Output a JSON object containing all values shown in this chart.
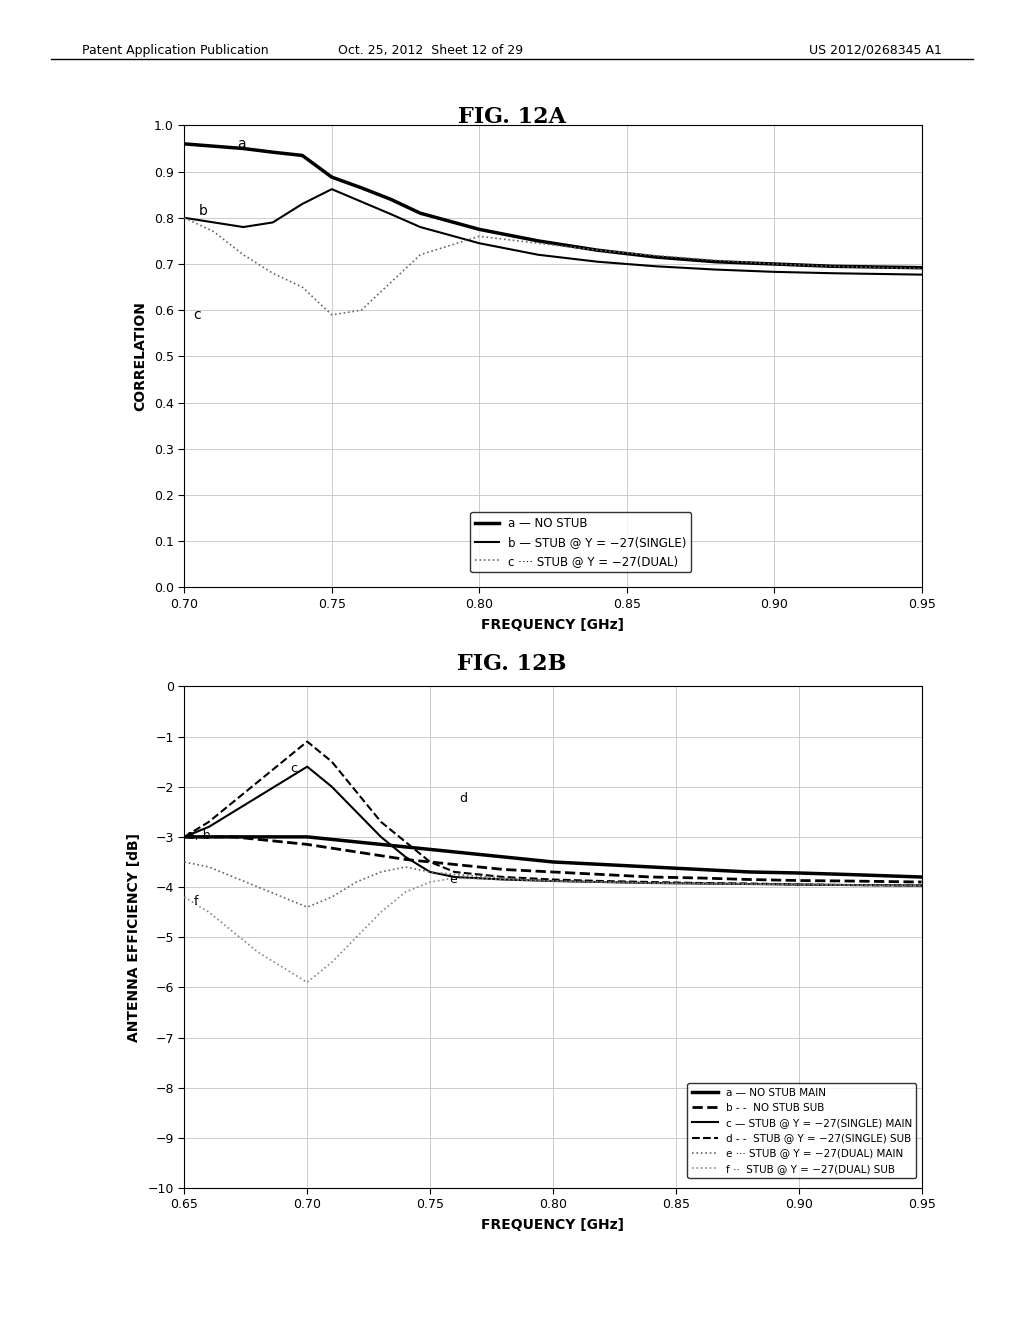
{
  "fig12a_title": "FIG. 12A",
  "fig12b_title": "FIG. 12B",
  "header_left": "Patent Application Publication",
  "header_mid": "Oct. 25, 2012  Sheet 12 of 29",
  "header_right": "US 2012/0268345 A1",
  "fig12a": {
    "xlabel": "FREQUENCY [GHz]",
    "ylabel": "CORRELATION",
    "xlim": [
      0.7,
      0.95
    ],
    "ylim": [
      0,
      1
    ],
    "xticks": [
      0.7,
      0.75,
      0.8,
      0.85,
      0.9,
      0.95
    ],
    "yticks": [
      0,
      0.1,
      0.2,
      0.3,
      0.4,
      0.5,
      0.6,
      0.7,
      0.8,
      0.9,
      1.0
    ],
    "curve_a_x": [
      0.7,
      0.71,
      0.72,
      0.73,
      0.74,
      0.75,
      0.76,
      0.77,
      0.78,
      0.8,
      0.82,
      0.84,
      0.86,
      0.88,
      0.9,
      0.92,
      0.95
    ],
    "curve_a_y": [
      0.96,
      0.955,
      0.95,
      0.942,
      0.935,
      0.888,
      0.865,
      0.84,
      0.81,
      0.775,
      0.75,
      0.73,
      0.715,
      0.705,
      0.7,
      0.695,
      0.692
    ],
    "curve_b_x": [
      0.7,
      0.71,
      0.72,
      0.73,
      0.74,
      0.75,
      0.76,
      0.77,
      0.78,
      0.8,
      0.82,
      0.84,
      0.86,
      0.88,
      0.9,
      0.92,
      0.95
    ],
    "curve_b_y": [
      0.8,
      0.79,
      0.78,
      0.79,
      0.83,
      0.862,
      0.835,
      0.808,
      0.78,
      0.745,
      0.72,
      0.705,
      0.695,
      0.688,
      0.683,
      0.68,
      0.677
    ],
    "curve_c_x": [
      0.7,
      0.71,
      0.72,
      0.73,
      0.74,
      0.75,
      0.76,
      0.77,
      0.78,
      0.8,
      0.82,
      0.84,
      0.86,
      0.88,
      0.9,
      0.92,
      0.95
    ],
    "curve_c_y": [
      0.8,
      0.77,
      0.72,
      0.68,
      0.65,
      0.59,
      0.6,
      0.66,
      0.72,
      0.76,
      0.745,
      0.73,
      0.718,
      0.708,
      0.7,
      0.695,
      0.69
    ]
  },
  "fig12b": {
    "xlabel": "FREQUENCY [GHz]",
    "ylabel": "ANTENNA EFFICIENCY [dB]",
    "xlim": [
      0.65,
      0.95
    ],
    "ylim": [
      -10,
      0
    ],
    "xticks": [
      0.65,
      0.7,
      0.75,
      0.8,
      0.85,
      0.9,
      0.95
    ],
    "yticks": [
      -10,
      -9,
      -8,
      -7,
      -6,
      -5,
      -4,
      -3,
      -2,
      -1,
      0
    ],
    "curve_a_x": [
      0.65,
      0.66,
      0.67,
      0.68,
      0.69,
      0.7,
      0.72,
      0.74,
      0.76,
      0.78,
      0.8,
      0.82,
      0.84,
      0.86,
      0.88,
      0.9,
      0.92,
      0.95
    ],
    "curve_a_y": [
      -3.0,
      -3.0,
      -3.0,
      -3.0,
      -3.0,
      -3.0,
      -3.1,
      -3.2,
      -3.3,
      -3.4,
      -3.5,
      -3.55,
      -3.6,
      -3.65,
      -3.7,
      -3.72,
      -3.75,
      -3.8
    ],
    "curve_b_x": [
      0.65,
      0.66,
      0.67,
      0.68,
      0.69,
      0.7,
      0.72,
      0.74,
      0.76,
      0.78,
      0.8,
      0.82,
      0.84,
      0.86,
      0.88,
      0.9,
      0.92,
      0.95
    ],
    "curve_b_y": [
      -3.0,
      -3.0,
      -3.0,
      -3.05,
      -3.1,
      -3.15,
      -3.3,
      -3.45,
      -3.55,
      -3.65,
      -3.7,
      -3.75,
      -3.8,
      -3.82,
      -3.85,
      -3.87,
      -3.88,
      -3.9
    ],
    "curve_c_x": [
      0.65,
      0.66,
      0.67,
      0.68,
      0.69,
      0.695,
      0.7,
      0.71,
      0.72,
      0.73,
      0.74,
      0.75,
      0.76,
      0.78,
      0.8,
      0.82,
      0.84,
      0.86,
      0.88,
      0.9,
      0.92,
      0.95
    ],
    "curve_c_y": [
      -3.0,
      -2.8,
      -2.5,
      -2.2,
      -1.9,
      -1.75,
      -1.6,
      -2.0,
      -2.5,
      -3.0,
      -3.4,
      -3.7,
      -3.8,
      -3.85,
      -3.88,
      -3.9,
      -3.92,
      -3.93,
      -3.94,
      -3.95,
      -3.96,
      -3.97
    ],
    "curve_d_x": [
      0.65,
      0.66,
      0.67,
      0.68,
      0.69,
      0.695,
      0.7,
      0.71,
      0.72,
      0.73,
      0.74,
      0.75,
      0.76,
      0.78,
      0.8,
      0.82,
      0.84,
      0.86,
      0.88,
      0.9,
      0.92,
      0.95
    ],
    "curve_d_y": [
      -3.0,
      -2.7,
      -2.3,
      -1.9,
      -1.5,
      -1.3,
      -1.1,
      -1.5,
      -2.1,
      -2.7,
      -3.1,
      -3.5,
      -3.7,
      -3.8,
      -3.85,
      -3.88,
      -3.9,
      -3.92,
      -3.93,
      -3.95,
      -3.96,
      -3.97
    ],
    "curve_e_x": [
      0.65,
      0.66,
      0.67,
      0.68,
      0.69,
      0.695,
      0.7,
      0.71,
      0.72,
      0.73,
      0.74,
      0.75,
      0.76,
      0.78,
      0.8,
      0.82,
      0.84,
      0.86,
      0.88,
      0.9,
      0.92,
      0.95
    ],
    "curve_e_y": [
      -3.5,
      -3.6,
      -3.8,
      -4.0,
      -4.2,
      -4.3,
      -4.4,
      -4.2,
      -3.9,
      -3.7,
      -3.6,
      -3.7,
      -3.75,
      -3.82,
      -3.88,
      -3.9,
      -3.92,
      -3.93,
      -3.94,
      -3.95,
      -3.96,
      -3.97
    ],
    "curve_f_x": [
      0.65,
      0.66,
      0.67,
      0.68,
      0.69,
      0.695,
      0.7,
      0.71,
      0.72,
      0.73,
      0.74,
      0.75,
      0.76,
      0.78,
      0.8,
      0.82,
      0.84,
      0.86,
      0.88,
      0.9,
      0.92,
      0.95
    ],
    "curve_f_y": [
      -4.2,
      -4.5,
      -4.9,
      -5.3,
      -5.6,
      -5.75,
      -5.9,
      -5.5,
      -5.0,
      -4.5,
      -4.1,
      -3.9,
      -3.82,
      -3.85,
      -3.88,
      -3.9,
      -3.92,
      -3.93,
      -3.94,
      -3.95,
      -3.96,
      -3.97
    ]
  },
  "bg_color": "#ffffff",
  "line_color": "#000000",
  "gray_color": "#888888"
}
